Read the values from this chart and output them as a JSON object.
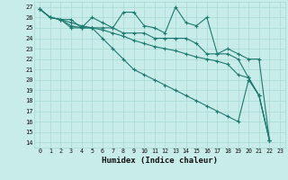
{
  "xlabel": "Humidex (Indice chaleur)",
  "bg_color": "#c8ece9",
  "grid_color": "#a8d8d4",
  "line_color": "#1e7a70",
  "xlim": [
    -0.5,
    23.5
  ],
  "ylim": [
    13.5,
    27.5
  ],
  "xticks": [
    0,
    1,
    2,
    3,
    4,
    5,
    6,
    7,
    8,
    9,
    10,
    11,
    12,
    13,
    14,
    15,
    16,
    17,
    18,
    19,
    20,
    21,
    22,
    23
  ],
  "yticks": [
    14,
    15,
    16,
    17,
    18,
    19,
    20,
    21,
    22,
    23,
    24,
    25,
    26,
    27
  ],
  "series": [
    [
      26.8,
      26.0,
      25.8,
      25.8,
      25.0,
      26.0,
      25.5,
      25.0,
      26.5,
      26.5,
      25.2,
      25.0,
      24.5,
      27.0,
      25.5,
      25.2,
      26.0,
      22.5,
      23.0,
      22.5,
      22.0,
      22.0,
      14.2
    ],
    [
      26.8,
      26.0,
      25.8,
      25.5,
      25.2,
      25.0,
      24.8,
      24.5,
      24.2,
      23.8,
      23.5,
      23.2,
      23.0,
      22.8,
      22.5,
      22.2,
      22.0,
      21.8,
      21.5,
      20.5,
      20.2,
      18.5,
      14.2
    ],
    [
      26.8,
      26.0,
      25.8,
      25.2,
      25.0,
      25.0,
      25.0,
      25.0,
      24.5,
      24.5,
      24.5,
      24.0,
      24.0,
      24.0,
      24.0,
      23.5,
      22.5,
      22.5,
      22.5,
      22.0,
      20.2,
      18.5,
      14.2
    ],
    [
      26.8,
      26.0,
      25.8,
      25.0,
      25.0,
      25.0,
      24.0,
      23.0,
      22.0,
      21.0,
      20.5,
      20.0,
      19.5,
      19.0,
      18.5,
      18.0,
      17.5,
      17.0,
      16.5,
      16.0,
      20.0,
      18.5,
      14.2
    ]
  ]
}
